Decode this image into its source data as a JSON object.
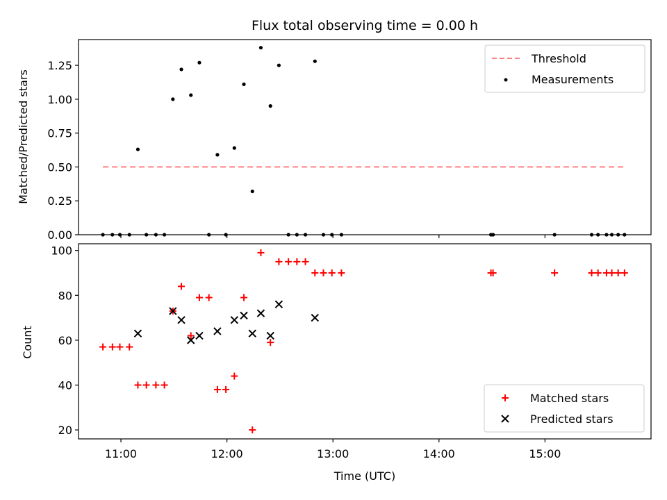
{
  "chart_data": [
    {
      "type": "scatter",
      "title": "Flux total observing time = 0.00 h",
      "xlabel": "",
      "ylabel": "Matched/Predicted stars",
      "xlim": [
        10.6,
        16.0
      ],
      "ylim": [
        0,
        1.44
      ],
      "yticks": [
        0,
        0.25,
        0.5,
        0.75,
        1.0,
        1.25
      ],
      "ytick_labels": [
        "0.00",
        "0.25",
        "0.50",
        "0.75",
        "1.00",
        "1.25"
      ],
      "xticks": [
        11,
        12,
        13,
        14,
        15
      ],
      "legend_position": "top-right",
      "series": [
        {
          "name": "Threshold",
          "kind": "line",
          "style": "dashed",
          "color": "#ff8080",
          "x": [
            10.83,
            15.75
          ],
          "y": [
            0.5,
            0.5
          ]
        },
        {
          "name": "Measurements",
          "kind": "scatter",
          "marker": "dot",
          "color": "#000000",
          "x": [
            10.83,
            10.92,
            10.99,
            11.08,
            11.16,
            11.24,
            11.33,
            11.41,
            11.49,
            11.57,
            11.66,
            11.74,
            11.83,
            11.91,
            11.99,
            12.07,
            12.16,
            12.24,
            12.32,
            12.41,
            12.49,
            12.58,
            12.66,
            12.74,
            12.83,
            12.91,
            12.99,
            13.08,
            14.49,
            14.51,
            15.09,
            15.44,
            15.5,
            15.58,
            15.63,
            15.69,
            15.75
          ],
          "y": [
            0,
            0,
            0,
            0,
            0.63,
            0,
            0,
            0,
            1.0,
            1.22,
            1.03,
            1.27,
            0,
            0.59,
            0,
            0.64,
            1.11,
            0.32,
            1.38,
            0.95,
            1.25,
            0,
            0,
            0,
            1.28,
            0,
            0,
            0,
            0,
            0,
            0,
            0,
            0,
            0,
            0,
            0,
            0
          ]
        }
      ]
    },
    {
      "type": "scatter",
      "title": "",
      "xlabel": "Time (UTC)",
      "ylabel": "Count",
      "xlim": [
        10.6,
        16.0
      ],
      "ylim": [
        16,
        103
      ],
      "yticks": [
        20,
        40,
        60,
        80,
        100
      ],
      "ytick_labels": [
        "20",
        "40",
        "60",
        "80",
        "100"
      ],
      "xticks": [
        11,
        12,
        13,
        14,
        15
      ],
      "xtick_labels": [
        "11:00",
        "12:00",
        "13:00",
        "14:00",
        "15:00"
      ],
      "legend_position": "bottom-right",
      "series": [
        {
          "name": "Matched stars",
          "kind": "scatter",
          "marker": "plus",
          "color": "#ff0000",
          "x": [
            10.83,
            10.92,
            10.99,
            11.08,
            11.16,
            11.24,
            11.33,
            11.41,
            11.49,
            11.57,
            11.66,
            11.74,
            11.83,
            11.91,
            11.99,
            12.07,
            12.16,
            12.24,
            12.32,
            12.41,
            12.49,
            12.58,
            12.66,
            12.74,
            12.83,
            12.91,
            12.99,
            13.08,
            14.49,
            14.51,
            15.09,
            15.44,
            15.5,
            15.58,
            15.63,
            15.69,
            15.75
          ],
          "y": [
            57,
            57,
            57,
            57,
            40,
            40,
            40,
            40,
            73,
            84,
            62,
            79,
            79,
            38,
            38,
            44,
            79,
            20,
            99,
            59,
            95,
            95,
            95,
            95,
            90,
            90,
            90,
            90,
            90,
            90,
            90,
            90,
            90,
            90,
            90,
            90,
            90
          ]
        },
        {
          "name": "Predicted stars",
          "kind": "scatter",
          "marker": "x",
          "color": "#000000",
          "x": [
            11.16,
            11.49,
            11.57,
            11.66,
            11.74,
            11.91,
            12.07,
            12.16,
            12.24,
            12.32,
            12.41,
            12.49,
            12.83
          ],
          "y": [
            63,
            73,
            69,
            60,
            62,
            64,
            69,
            71,
            63,
            72,
            62,
            76,
            70
          ]
        }
      ]
    }
  ]
}
